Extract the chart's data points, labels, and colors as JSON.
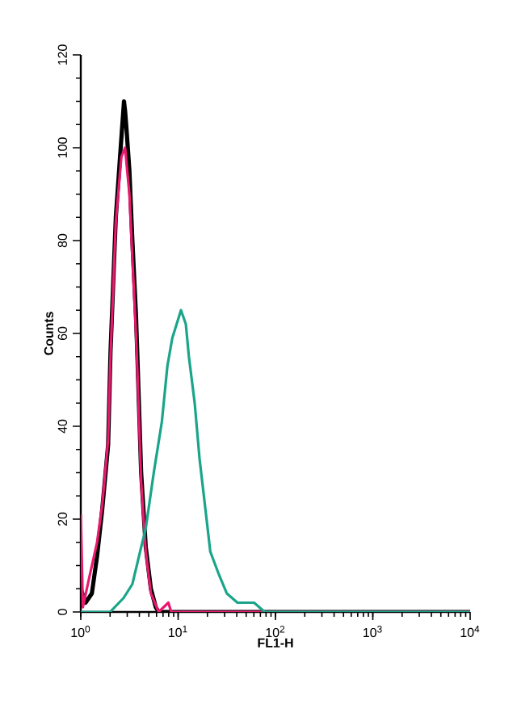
{
  "chart_data": {
    "type": "line",
    "xlabel": "FL1-H",
    "ylabel": "Counts",
    "log": "x",
    "xlim": [
      1,
      10000
    ],
    "ylim": [
      0,
      120
    ],
    "xticks": [
      {
        "value": 1,
        "label": "10$^{0}$"
      },
      {
        "value": 10,
        "label": "10$^{1}$"
      },
      {
        "value": 100,
        "label": "10$^{2}$"
      },
      {
        "value": 1000,
        "label": "10$^{3}$"
      },
      {
        "value": 10000,
        "label": "10$^{4}$"
      }
    ],
    "yticks": [
      0,
      20,
      40,
      60,
      80,
      100,
      120
    ],
    "grid": false,
    "marker": "none",
    "line_style": "solid",
    "series": [
      {
        "color": "#000000",
        "x": [
          1,
          1.12,
          1.3,
          1.47,
          1.66,
          1.91,
          2.02,
          2.29,
          2.61,
          2.78,
          2.85,
          2.95,
          3.16,
          3.39,
          3.69,
          3.83,
          4.17,
          4.65,
          5.25,
          5.9,
          6.31,
          10000
        ],
        "values": [
          5,
          2,
          4,
          12,
          22,
          36,
          56,
          85,
          102,
          110,
          108,
          104,
          95,
          80,
          64,
          54,
          30,
          14,
          5,
          1,
          0,
          0
        ]
      },
      {
        "color": "#e8196e",
        "x": [
          1,
          1.05,
          1.21,
          1.47,
          1.66,
          1.91,
          2.02,
          2.29,
          2.61,
          2.85,
          3.16,
          3.39,
          3.69,
          3.83,
          4.17,
          4.65,
          5.25,
          6.31,
          7.94,
          8.5,
          100,
          10000
        ],
        "values": [
          21,
          1,
          7,
          15,
          23,
          37,
          55,
          84,
          98,
          100,
          90,
          76,
          60,
          51,
          28,
          13,
          4,
          0,
          2,
          0,
          0,
          0
        ]
      },
      {
        "color": "#1aa58a",
        "x": [
          1,
          2.0,
          2.75,
          3.39,
          4.07,
          4.65,
          5.62,
          6.81,
          7.76,
          8.71,
          10.7,
          12.0,
          12.9,
          14.8,
          16.6,
          19.1,
          21.4,
          26.3,
          31.6,
          40.7,
          60.3,
          77.6,
          10000
        ],
        "values": [
          0,
          0,
          3,
          6,
          13,
          18,
          30,
          41,
          53,
          59,
          65,
          62,
          55,
          45,
          33,
          22,
          13,
          8,
          4,
          2,
          2,
          0,
          0
        ]
      }
    ]
  }
}
